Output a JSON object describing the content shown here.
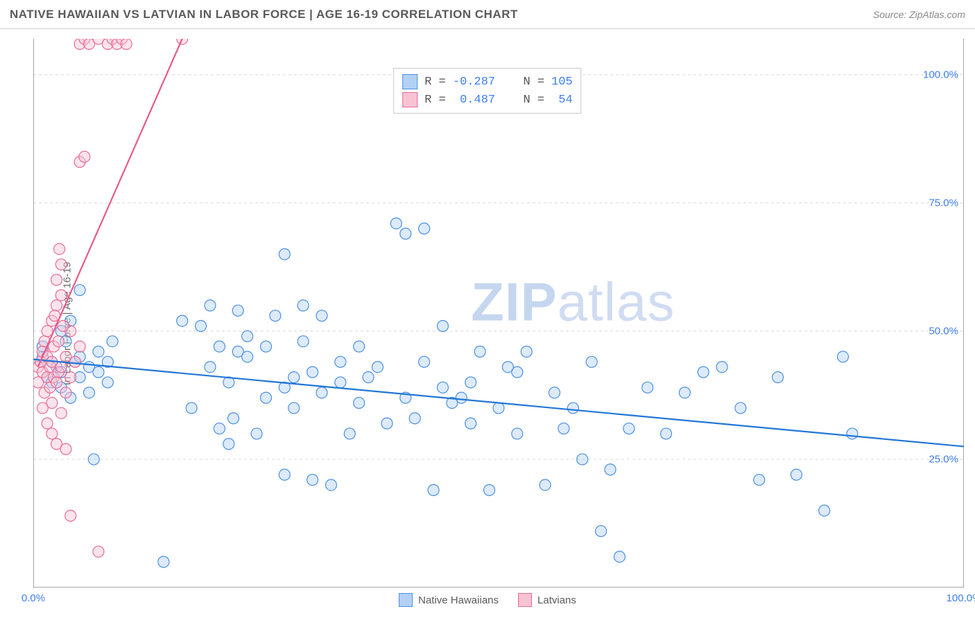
{
  "header": {
    "title": "NATIVE HAWAIIAN VS LATVIAN IN LABOR FORCE | AGE 16-19 CORRELATION CHART",
    "source_prefix": "Source: ",
    "source_link": "ZipAtlas.com"
  },
  "y_axis_label": "In Labor Force | Age 16-19",
  "watermark_a": "ZIP",
  "watermark_b": "atlas",
  "chart": {
    "type": "scatter",
    "background_color": "#ffffff",
    "grid_color": "#d8d8d8",
    "axis_color": "#888888",
    "tick_label_color": "#3d7ff0",
    "xlim": [
      0,
      100
    ],
    "ylim": [
      0,
      107
    ],
    "x_ticks": [
      0,
      12.5,
      25,
      37.5,
      50,
      62.5,
      75,
      87.5,
      100
    ],
    "x_tick_labels": {
      "0": "0.0%",
      "100": "100.0%"
    },
    "y_ticks": [
      25,
      50,
      75,
      100
    ],
    "y_tick_labels": {
      "25": "25.0%",
      "50": "50.0%",
      "75": "75.0%",
      "100": "100.0%"
    },
    "marker_radius": 8,
    "marker_stroke_width": 1.2,
    "line_width": 2.2,
    "series": [
      {
        "name": "Native Hawaiians",
        "fill_color": "#b3d1f5",
        "stroke_color": "#4a90e2",
        "line_color": "#2176d6",
        "trend": {
          "x1": 0,
          "y1": 44.5,
          "x2": 100,
          "y2": 27.5
        },
        "stats": {
          "R": "-0.287",
          "N": "105"
        },
        "points": [
          [
            1,
            47
          ],
          [
            1,
            45
          ],
          [
            1.5,
            41
          ],
          [
            2,
            44
          ],
          [
            2,
            40
          ],
          [
            2.5,
            43
          ],
          [
            3,
            50
          ],
          [
            3,
            42
          ],
          [
            3,
            39
          ],
          [
            3.5,
            48
          ],
          [
            4,
            37
          ],
          [
            4,
            52
          ],
          [
            4.5,
            44
          ],
          [
            5,
            41
          ],
          [
            5,
            45
          ],
          [
            5,
            58
          ],
          [
            6,
            43
          ],
          [
            6,
            38
          ],
          [
            6.5,
            25
          ],
          [
            7,
            42
          ],
          [
            7,
            46
          ],
          [
            8,
            40
          ],
          [
            8,
            44
          ],
          [
            8.5,
            48
          ],
          [
            14,
            5
          ],
          [
            16,
            52
          ],
          [
            17,
            35
          ],
          [
            18,
            51
          ],
          [
            19,
            43
          ],
          [
            19,
            55
          ],
          [
            20,
            31
          ],
          [
            20,
            47
          ],
          [
            21,
            28
          ],
          [
            21,
            40
          ],
          [
            21.5,
            33
          ],
          [
            22,
            46
          ],
          [
            22,
            54
          ],
          [
            23,
            45
          ],
          [
            23,
            49
          ],
          [
            24,
            30
          ],
          [
            25,
            37
          ],
          [
            25,
            47
          ],
          [
            26,
            53
          ],
          [
            27,
            22
          ],
          [
            27,
            39
          ],
          [
            27,
            65
          ],
          [
            28,
            35
          ],
          [
            28,
            41
          ],
          [
            29,
            48
          ],
          [
            29,
            55
          ],
          [
            30,
            21
          ],
          [
            30,
            42
          ],
          [
            31,
            38
          ],
          [
            31,
            53
          ],
          [
            32,
            20
          ],
          [
            33,
            44
          ],
          [
            33,
            40
          ],
          [
            34,
            30
          ],
          [
            35,
            36
          ],
          [
            35,
            47
          ],
          [
            36,
            41
          ],
          [
            37,
            43
          ],
          [
            38,
            32
          ],
          [
            39,
            71
          ],
          [
            40,
            69
          ],
          [
            40,
            37
          ],
          [
            41,
            33
          ],
          [
            42,
            70
          ],
          [
            42,
            44
          ],
          [
            43,
            19
          ],
          [
            44,
            39
          ],
          [
            44,
            51
          ],
          [
            45,
            36
          ],
          [
            46,
            37
          ],
          [
            47,
            32
          ],
          [
            47,
            40
          ],
          [
            48,
            46
          ],
          [
            49,
            19
          ],
          [
            50,
            35
          ],
          [
            51,
            43
          ],
          [
            52,
            42
          ],
          [
            52,
            30
          ],
          [
            53,
            46
          ],
          [
            55,
            20
          ],
          [
            56,
            38
          ],
          [
            57,
            31
          ],
          [
            58,
            35
          ],
          [
            59,
            25
          ],
          [
            60,
            44
          ],
          [
            61,
            11
          ],
          [
            62,
            23
          ],
          [
            63,
            6
          ],
          [
            64,
            31
          ],
          [
            66,
            39
          ],
          [
            68,
            30
          ],
          [
            70,
            38
          ],
          [
            72,
            42
          ],
          [
            74,
            43
          ],
          [
            76,
            35
          ],
          [
            78,
            21
          ],
          [
            80,
            41
          ],
          [
            82,
            22
          ],
          [
            85,
            15
          ],
          [
            87,
            45
          ],
          [
            88,
            30
          ]
        ]
      },
      {
        "name": "Latvians",
        "fill_color": "#f7c3d3",
        "stroke_color": "#e86b95",
        "line_color": "#e75a8a",
        "trend": {
          "x1": 0.5,
          "y1": 43,
          "x2": 16,
          "y2": 107
        },
        "stats": {
          "R": " 0.487",
          "N": " 54"
        },
        "points": [
          [
            0.5,
            40
          ],
          [
            0.5,
            43
          ],
          [
            0.8,
            44
          ],
          [
            1,
            35
          ],
          [
            1,
            42
          ],
          [
            1,
            46
          ],
          [
            1.2,
            38
          ],
          [
            1.2,
            48
          ],
          [
            1.5,
            32
          ],
          [
            1.5,
            41
          ],
          [
            1.5,
            45
          ],
          [
            1.5,
            50
          ],
          [
            1.8,
            39
          ],
          [
            1.8,
            43
          ],
          [
            2,
            30
          ],
          [
            2,
            36
          ],
          [
            2,
            44
          ],
          [
            2,
            52
          ],
          [
            2.2,
            41
          ],
          [
            2.2,
            47
          ],
          [
            2.5,
            28
          ],
          [
            2.5,
            40
          ],
          [
            2.5,
            55
          ],
          [
            2.5,
            60
          ],
          [
            2.7,
            42
          ],
          [
            2.7,
            48
          ],
          [
            2.8,
            66
          ],
          [
            3,
            34
          ],
          [
            3,
            43
          ],
          [
            3,
            57
          ],
          [
            3,
            63
          ],
          [
            3.5,
            27
          ],
          [
            3.5,
            38
          ],
          [
            3.5,
            45
          ],
          [
            4,
            14
          ],
          [
            4,
            41
          ],
          [
            4,
            50
          ],
          [
            4.5,
            44
          ],
          [
            5,
            47
          ],
          [
            5,
            83
          ],
          [
            5.5,
            84
          ],
          [
            5,
            106
          ],
          [
            5.5,
            107
          ],
          [
            6,
            106
          ],
          [
            7,
            107
          ],
          [
            7,
            7
          ],
          [
            8,
            106
          ],
          [
            8.5,
            107
          ],
          [
            9,
            106
          ],
          [
            9.5,
            107
          ],
          [
            10,
            106
          ],
          [
            16,
            107
          ],
          [
            3.2,
            51
          ],
          [
            2.3,
            53
          ]
        ]
      }
    ]
  },
  "stats_box": {
    "r_label": "R =",
    "n_label": "N ="
  },
  "bottom_legend": {
    "items": [
      {
        "label": "Native Hawaiians",
        "fill": "#b3d1f5",
        "stroke": "#4a90e2"
      },
      {
        "label": "Latvians",
        "fill": "#f7c3d3",
        "stroke": "#e86b95"
      }
    ]
  }
}
